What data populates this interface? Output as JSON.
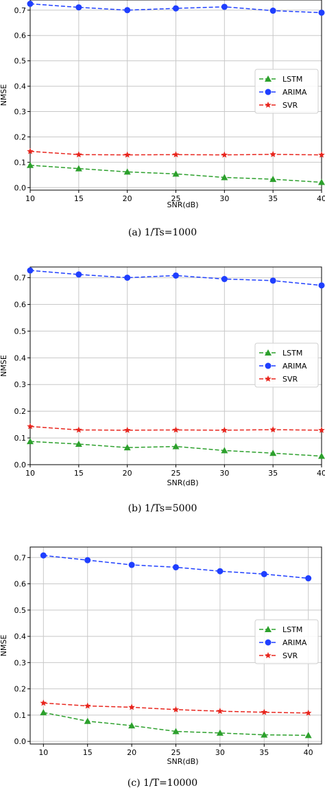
{
  "chart_data": [
    {
      "type": "line",
      "caption": "(a)  1/Ts=1000",
      "xlabel": "SNR(dB)",
      "ylabel": "NMSE",
      "x": [
        10,
        15,
        20,
        25,
        30,
        35,
        40
      ],
      "xlim": [
        10,
        40
      ],
      "ylim": [
        -0.01,
        0.74
      ],
      "xticks": [
        10,
        15,
        20,
        25,
        30,
        35,
        40
      ],
      "yticks": [
        0.0,
        0.1,
        0.2,
        0.3,
        0.4,
        0.5,
        0.6,
        0.7
      ],
      "ytick_labels": [
        "0.0",
        "0.1",
        "0.2",
        "0.3",
        "0.4",
        "0.5",
        "0.6",
        "0.7"
      ],
      "grid": true,
      "legend_position": "right",
      "series": [
        {
          "name": "LSTM",
          "color": "#2ca02c",
          "marker": "triangle",
          "values": [
            0.088,
            0.075,
            0.062,
            0.054,
            0.04,
            0.033,
            0.021
          ]
        },
        {
          "name": "ARIMA",
          "color": "#1f3fff",
          "marker": "circle",
          "values": [
            0.725,
            0.711,
            0.7,
            0.707,
            0.713,
            0.698,
            0.69
          ]
        },
        {
          "name": "SVR",
          "color": "#e8251d",
          "marker": "star",
          "values": [
            0.143,
            0.13,
            0.129,
            0.13,
            0.129,
            0.131,
            0.129
          ]
        }
      ]
    },
    {
      "type": "line",
      "caption": "(b)  1/Ts=5000",
      "xlabel": "SNR(dB)",
      "ylabel": "NMSE",
      "x": [
        10,
        15,
        20,
        25,
        30,
        35,
        40
      ],
      "xlim": [
        10,
        40
      ],
      "ylim": [
        0.0,
        0.74
      ],
      "xticks": [
        10,
        15,
        20,
        25,
        30,
        35,
        40
      ],
      "yticks": [
        0.0,
        0.1,
        0.2,
        0.3,
        0.4,
        0.5,
        0.6,
        0.7
      ],
      "ytick_labels": [
        "0.0",
        "0.1",
        "0.2",
        "0.3",
        "0.4",
        "0.5",
        "0.6",
        "0.7"
      ],
      "grid": true,
      "legend_position": "right",
      "series": [
        {
          "name": "LSTM",
          "color": "#2ca02c",
          "marker": "triangle",
          "values": [
            0.087,
            0.077,
            0.064,
            0.068,
            0.053,
            0.043,
            0.032
          ]
        },
        {
          "name": "ARIMA",
          "color": "#1f3fff",
          "marker": "circle",
          "values": [
            0.727,
            0.712,
            0.7,
            0.708,
            0.695,
            0.689,
            0.671
          ]
        },
        {
          "name": "SVR",
          "color": "#e8251d",
          "marker": "star",
          "values": [
            0.143,
            0.13,
            0.129,
            0.13,
            0.129,
            0.131,
            0.129
          ]
        }
      ]
    },
    {
      "type": "line",
      "caption": "(c)  1/T=10000",
      "xlabel": "SNR(dB)",
      "ylabel": "NMSE",
      "x": [
        10,
        15,
        20,
        25,
        30,
        35,
        40
      ],
      "xlim": [
        8.5,
        41.5
      ],
      "ylim": [
        -0.01,
        0.74
      ],
      "xticks": [
        10,
        15,
        20,
        25,
        30,
        35,
        40
      ],
      "yticks": [
        0.0,
        0.1,
        0.2,
        0.3,
        0.4,
        0.5,
        0.6,
        0.7
      ],
      "ytick_labels": [
        "0.0",
        "0.1",
        "0.2",
        "0.3",
        "0.4",
        "0.5",
        "0.6",
        "0.7"
      ],
      "grid": true,
      "legend_position": "right",
      "series": [
        {
          "name": "LSTM",
          "color": "#2ca02c",
          "marker": "triangle",
          "values": [
            0.11,
            0.077,
            0.06,
            0.038,
            0.032,
            0.025,
            0.023
          ]
        },
        {
          "name": "ARIMA",
          "color": "#1f3fff",
          "marker": "circle",
          "values": [
            0.708,
            0.69,
            0.672,
            0.663,
            0.648,
            0.637,
            0.621
          ]
        },
        {
          "name": "SVR",
          "color": "#e8251d",
          "marker": "star",
          "values": [
            0.146,
            0.135,
            0.13,
            0.121,
            0.115,
            0.111,
            0.108
          ]
        }
      ]
    }
  ]
}
